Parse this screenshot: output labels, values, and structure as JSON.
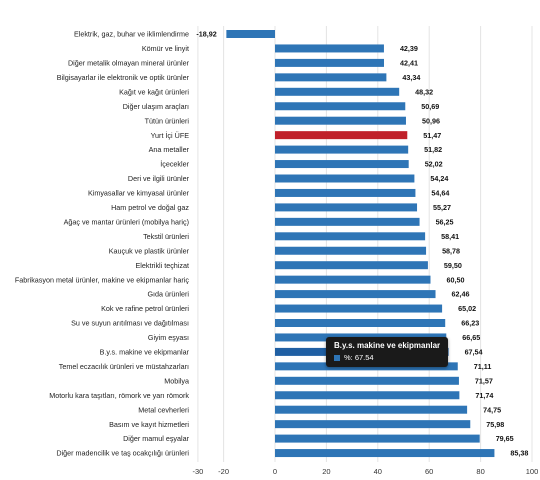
{
  "colors": {
    "bar": "#2e75b6",
    "highlight": "#c0202a",
    "hover": "#1f5fa3",
    "grid": "#e4e4e4",
    "tooltip_bg": "#1a1a1a"
  },
  "chart_data": {
    "type": "bar",
    "orientation": "horizontal",
    "categories": [
      "Elektrik, gaz, buhar ve iklimlendirme",
      "Kömür ve linyit",
      "Diğer metalik olmayan mineral ürünler",
      "Bilgisayarlar ile elektronik ve optik ürünler",
      "Kağıt ve kağıt ürünleri",
      "Diğer ulaşım araçları",
      "Tütün ürünleri",
      "Yurt İçi ÜFE",
      "Ana metaller",
      "İçecekler",
      "Deri ve ilgili ürünler",
      "Kimyasallar ve kimyasal ürünler",
      "Ham petrol ve doğal gaz",
      "Ağaç ve mantar ürünleri (mobilya hariç)",
      "Tekstil ürünleri",
      "Kauçuk ve plastik ürünler",
      "Elektrikli teçhizat",
      "Fabrikasyon metal ürünler, makine ve ekipmanlar hariç",
      "Gıda ürünleri",
      "Kok ve rafine petrol ürünleri",
      "Su ve suyun arıtılması ve dağıtılması",
      "Giyim eşyası",
      "B.y.s. makine ve ekipmanlar",
      "Temel eczacılık ürünleri ve müstahzarları",
      "Mobilya",
      "Motorlu kara taşıtları, römork ve yarı römork",
      "Metal cevherleri",
      "Basım ve kayıt hizmetleri",
      "Diğer mamul eşyalar",
      "Diğer madencilik ve taş ocakçılığı ürünleri"
    ],
    "values": [
      -18.92,
      42.39,
      42.41,
      43.34,
      48.32,
      50.69,
      50.96,
      51.47,
      51.82,
      52.02,
      54.24,
      54.64,
      55.27,
      56.25,
      58.41,
      58.78,
      59.5,
      60.5,
      62.46,
      65.02,
      66.23,
      66.65,
      67.54,
      71.11,
      71.57,
      71.74,
      74.75,
      75.98,
      79.65,
      85.38
    ],
    "value_labels": [
      "-18,92",
      "42,39",
      "42,41",
      "43,34",
      "48,32",
      "50,69",
      "50,96",
      "51,47",
      "51,82",
      "52,02",
      "54,24",
      "54,64",
      "55,27",
      "56,25",
      "58,41",
      "58,78",
      "59,50",
      "60,50",
      "62,46",
      "65,02",
      "66,23",
      "66,65",
      "67,54",
      "71,11",
      "71,57",
      "71,74",
      "74,75",
      "75,98",
      "79,65",
      "85,38"
    ],
    "highlight_category": "Yurt İçi ÜFE",
    "hover_category": "B.y.s. makine ve ekipmanlar",
    "xlim": [
      -30,
      100
    ],
    "xticks": [
      -30,
      -20,
      0,
      20,
      40,
      60,
      80,
      100
    ],
    "grid": true,
    "legend": "none"
  },
  "tooltip": {
    "title": "B.y.s. makine ve ekipmanlar",
    "value_text": "%: 67.54"
  }
}
